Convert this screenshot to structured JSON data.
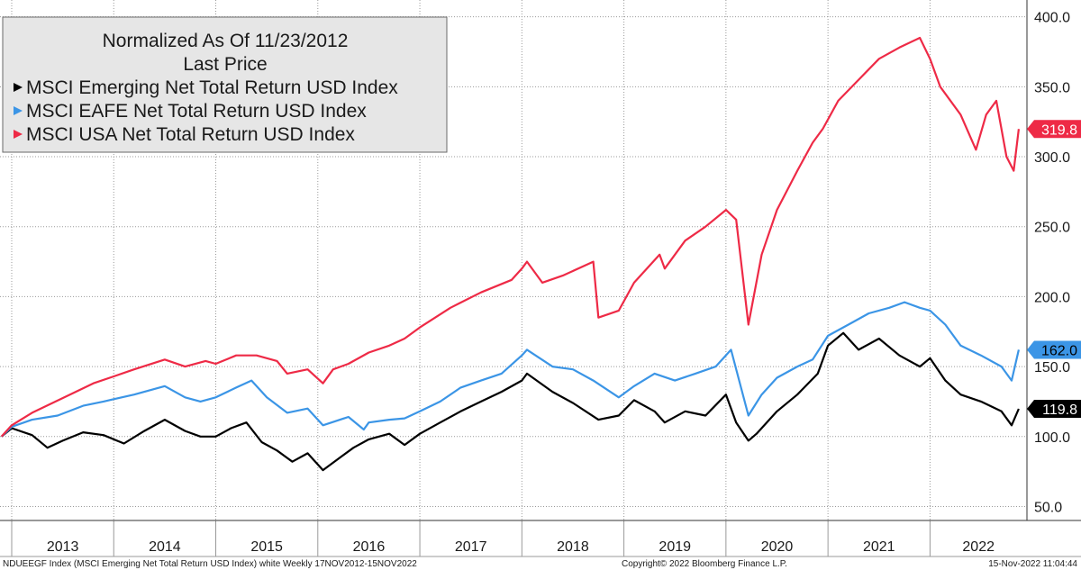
{
  "chart_data": {
    "type": "line",
    "title": "Normalized As Of 11/23/2012",
    "subtitle": "Last Price",
    "x_start": "2012-11-17",
    "x_end": "2022-11-15",
    "years": [
      "2013",
      "2014",
      "2015",
      "2016",
      "2017",
      "2018",
      "2019",
      "2020",
      "2021",
      "2022"
    ],
    "y_ticks": [
      "50.0",
      "100.0",
      "150.0",
      "200.0",
      "250.0",
      "300.0",
      "350.0",
      "400.0"
    ],
    "ylim": [
      40,
      412
    ],
    "grid": true,
    "legend_position": "top-left",
    "series": [
      {
        "name": "MSCI Emerging Net Total Return USD Index",
        "color": "#000000",
        "last_value": "119.8",
        "x": [
          2012.9,
          2013.0,
          2013.2,
          2013.35,
          2013.5,
          2013.7,
          2013.9,
          2014.1,
          2014.3,
          2014.5,
          2014.7,
          2014.85,
          2015.0,
          2015.15,
          2015.3,
          2015.45,
          2015.6,
          2015.75,
          2015.9,
          2016.05,
          2016.2,
          2016.35,
          2016.5,
          2016.7,
          2016.85,
          2017.0,
          2017.2,
          2017.4,
          2017.6,
          2017.8,
          2018.0,
          2018.05,
          2018.3,
          2018.5,
          2018.75,
          2018.95,
          2019.1,
          2019.3,
          2019.4,
          2019.6,
          2019.8,
          2020.0,
          2020.1,
          2020.22,
          2020.3,
          2020.5,
          2020.7,
          2020.9,
          2021.0,
          2021.15,
          2021.3,
          2021.5,
          2021.7,
          2021.9,
          2022.0,
          2022.15,
          2022.3,
          2022.5,
          2022.7,
          2022.8,
          2022.87
        ],
        "values": [
          100,
          106,
          101,
          92,
          97,
          103,
          101,
          95,
          104,
          112,
          104,
          100,
          100,
          106,
          110,
          96,
          90,
          82,
          88,
          76,
          84,
          92,
          98,
          102,
          94,
          102,
          110,
          118,
          125,
          132,
          140,
          145,
          132,
          124,
          112,
          115,
          126,
          118,
          110,
          118,
          115,
          130,
          110,
          97,
          102,
          118,
          130,
          145,
          165,
          174,
          162,
          170,
          158,
          150,
          156,
          140,
          130,
          125,
          118,
          108,
          119.8
        ]
      },
      {
        "name": "MSCI EAFE Net Total Return USD Index",
        "color": "#3b95e6",
        "last_value": "162.0",
        "x": [
          2012.9,
          2013.0,
          2013.2,
          2013.45,
          2013.7,
          2013.9,
          2014.2,
          2014.5,
          2014.7,
          2014.85,
          2015.0,
          2015.2,
          2015.35,
          2015.5,
          2015.7,
          2015.9,
          2016.05,
          2016.3,
          2016.45,
          2016.5,
          2016.7,
          2016.85,
          2017.0,
          2017.2,
          2017.4,
          2017.6,
          2017.8,
          2018.0,
          2018.05,
          2018.3,
          2018.5,
          2018.7,
          2018.95,
          2019.1,
          2019.3,
          2019.5,
          2019.7,
          2019.9,
          2020.05,
          2020.22,
          2020.35,
          2020.5,
          2020.7,
          2020.85,
          2021.0,
          2021.2,
          2021.4,
          2021.6,
          2021.75,
          2021.9,
          2022.0,
          2022.15,
          2022.3,
          2022.5,
          2022.7,
          2022.8,
          2022.87
        ],
        "values": [
          100,
          107,
          112,
          115,
          122,
          125,
          130,
          136,
          128,
          125,
          128,
          135,
          140,
          128,
          117,
          120,
          108,
          114,
          105,
          110,
          112,
          113,
          118,
          125,
          135,
          140,
          145,
          158,
          162,
          150,
          148,
          140,
          128,
          136,
          145,
          140,
          145,
          150,
          162,
          115,
          130,
          142,
          150,
          155,
          172,
          180,
          188,
          192,
          196,
          192,
          190,
          180,
          165,
          158,
          150,
          140,
          162.0
        ]
      },
      {
        "name": "MSCI USA Net Total Return USD Index",
        "color": "#ee2a46",
        "last_value": "319.8",
        "x": [
          2012.9,
          2013.0,
          2013.2,
          2013.4,
          2013.6,
          2013.8,
          2014.0,
          2014.2,
          2014.5,
          2014.7,
          2014.9,
          2015.0,
          2015.2,
          2015.4,
          2015.6,
          2015.7,
          2015.9,
          2016.05,
          2016.15,
          2016.3,
          2016.5,
          2016.7,
          2016.85,
          2017.0,
          2017.3,
          2017.6,
          2017.9,
          2018.0,
          2018.05,
          2018.2,
          2018.4,
          2018.7,
          2018.75,
          2018.95,
          2019.1,
          2019.35,
          2019.4,
          2019.6,
          2019.8,
          2020.0,
          2020.1,
          2020.22,
          2020.35,
          2020.5,
          2020.7,
          2020.85,
          2020.95,
          2021.1,
          2021.3,
          2021.5,
          2021.7,
          2021.9,
          2022.0,
          2022.1,
          2022.3,
          2022.45,
          2022.55,
          2022.65,
          2022.75,
          2022.82,
          2022.87
        ],
        "values": [
          100,
          108,
          117,
          124,
          131,
          138,
          143,
          148,
          155,
          150,
          154,
          152,
          158,
          158,
          154,
          145,
          148,
          138,
          148,
          152,
          160,
          165,
          170,
          178,
          192,
          203,
          212,
          220,
          225,
          210,
          215,
          225,
          185,
          190,
          210,
          230,
          220,
          240,
          250,
          262,
          255,
          180,
          230,
          262,
          290,
          310,
          320,
          340,
          355,
          370,
          378,
          385,
          370,
          350,
          330,
          305,
          330,
          340,
          300,
          290,
          319.8
        ]
      }
    ]
  },
  "footer": {
    "left": "NDUEEGF Index (MSCI Emerging Net Total Return USD Index) white  Weekly 17NOV2012-15NOV2022",
    "center": "Copyright© 2022 Bloomberg Finance L.P.",
    "right": "15-Nov-2022 11:04:44"
  }
}
